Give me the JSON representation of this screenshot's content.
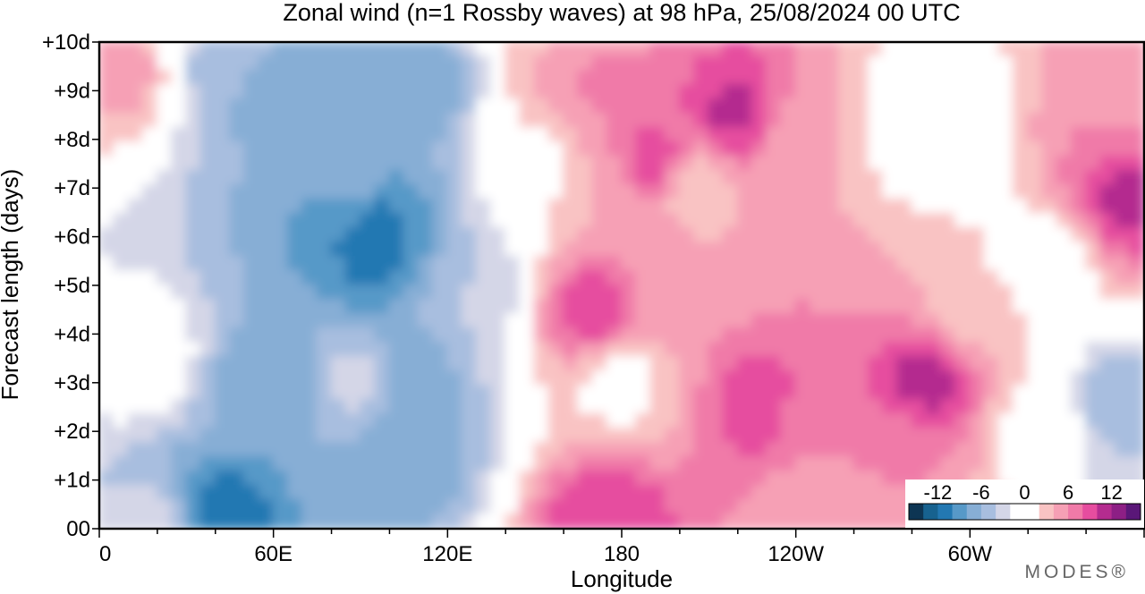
{
  "chart_data": {
    "type": "heatmap",
    "title": "Zonal wind (n=1 Rossby waves) at 98 hPa,  25/08/2024  00 UTC",
    "xlabel": "Longitude",
    "ylabel": "Forecast length (days)",
    "x_ticks": [
      "0",
      "60E",
      "120E",
      "180",
      "120W",
      "60W"
    ],
    "x_tick_degrees": [
      0,
      60,
      120,
      180,
      240,
      300
    ],
    "xlim": [
      0,
      360
    ],
    "y_ticks": [
      "00",
      "+1d",
      "+2d",
      "+3d",
      "+4d",
      "+5d",
      "+6d",
      "+7d",
      "+8d",
      "+9d",
      "+10d"
    ],
    "ylim": [
      0,
      10
    ],
    "colorbar": {
      "tick_labels": [
        "-12",
        "-6",
        "0",
        "6",
        "12"
      ],
      "levels": [
        -14,
        -12,
        -10,
        -8,
        -6,
        -4,
        -2,
        0,
        2,
        4,
        6,
        8,
        10,
        12,
        14
      ],
      "colors": [
        "#0d3553",
        "#17628f",
        "#2378b2",
        "#5799c8",
        "#87aed5",
        "#a8bedf",
        "#d4d6e7",
        "#ffffff",
        "#ffffff",
        "#f9c3c3",
        "#f6a0b5",
        "#f07aa8",
        "#e64d9f",
        "#b42c8f",
        "#8d1f85",
        "#5a1778"
      ]
    },
    "features": [
      {
        "lon": 8,
        "day": 9.3,
        "value": 5
      },
      {
        "lon": 20,
        "day": 0.1,
        "value": -3
      },
      {
        "lon": 40,
        "day": 0.2,
        "value": -12
      },
      {
        "lon": 45,
        "day": 9.5,
        "value": -5
      },
      {
        "lon": 58,
        "day": 9.0,
        "value": -7
      },
      {
        "lon": 60,
        "day": 3.0,
        "value": -8
      },
      {
        "lon": 85,
        "day": 8.6,
        "value": -8
      },
      {
        "lon": 90,
        "day": 7.0,
        "value": -7
      },
      {
        "lon": 95,
        "day": 6.4,
        "value": -11
      },
      {
        "lon": 95,
        "day": 5.6,
        "value": -11
      },
      {
        "lon": 90,
        "day": 3.0,
        "value": -3
      },
      {
        "lon": 110,
        "day": 9.0,
        "value": -8
      },
      {
        "lon": 105,
        "day": 3.0,
        "value": -8
      },
      {
        "lon": 105,
        "day": 1.5,
        "value": -8
      },
      {
        "lon": 130,
        "day": 5.0,
        "value": -4
      },
      {
        "lon": 15,
        "day": 3.5,
        "value": 0
      },
      {
        "lon": 150,
        "day": 7.5,
        "value": 0
      },
      {
        "lon": 160,
        "day": 9.0,
        "value": 4
      },
      {
        "lon": 170,
        "day": 9.0,
        "value": 7
      },
      {
        "lon": 170,
        "day": 4.5,
        "value": 10
      },
      {
        "lon": 175,
        "day": 7.0,
        "value": 4
      },
      {
        "lon": 180,
        "day": 3.0,
        "value": 1
      },
      {
        "lon": 175,
        "day": 0.1,
        "value": 10
      },
      {
        "lon": 190,
        "day": 7.5,
        "value": 10
      },
      {
        "lon": 195,
        "day": 5.0,
        "value": 5
      },
      {
        "lon": 205,
        "day": 7.0,
        "value": 2
      },
      {
        "lon": 220,
        "day": 8.5,
        "value": 11
      },
      {
        "lon": 240,
        "day": 8.0,
        "value": 4
      },
      {
        "lon": 230,
        "day": 2.5,
        "value": 10
      },
      {
        "lon": 245,
        "day": 2.4,
        "value": 6
      },
      {
        "lon": 285,
        "day": 3.0,
        "value": 11
      },
      {
        "lon": 275,
        "day": 1.5,
        "value": 6
      },
      {
        "lon": 300,
        "day": 4.5,
        "value": 3
      },
      {
        "lon": 245,
        "day": 0.5,
        "value": 5
      },
      {
        "lon": 290,
        "day": 8.3,
        "value": -2
      },
      {
        "lon": 325,
        "day": 2.0,
        "value": 1
      },
      {
        "lon": 355,
        "day": 6.8,
        "value": 11
      },
      {
        "lon": 348,
        "day": 8.5,
        "value": 6
      },
      {
        "lon": 360,
        "day": 9.6,
        "value": 4
      },
      {
        "lon": 352,
        "day": 2.5,
        "value": -6
      },
      {
        "lon": 360,
        "day": 0.5,
        "value": -3
      },
      {
        "lon": 325,
        "day": 5.5,
        "value": 0
      }
    ]
  },
  "brand": {
    "name": "MODES®"
  }
}
